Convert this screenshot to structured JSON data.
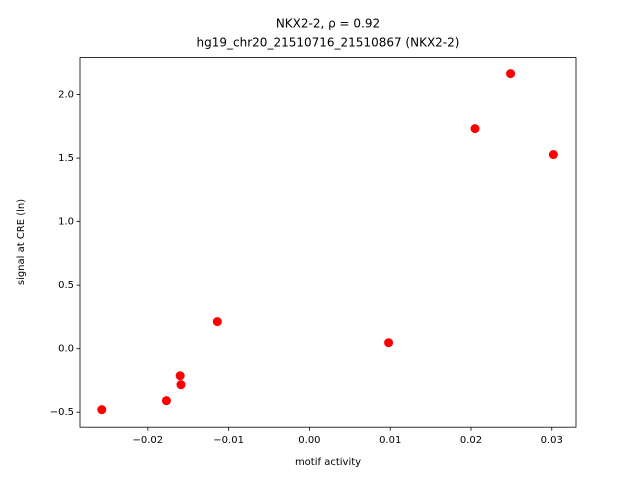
{
  "chart_data": {
    "type": "scatter",
    "title": "NKX2-2, ρ = 0.92",
    "subtitle": "hg19_chr20_21510716_21510867 (NKX2-2)",
    "x_label": "motif activity",
    "y_label": "signal at CRE (ln)",
    "color": "#ff0000",
    "x": [
      0.0302,
      0.0249,
      0.0205,
      0.0098,
      -0.0114,
      -0.016,
      -0.0159,
      -0.0177,
      -0.0257
    ],
    "values": [
      1.528,
      2.165,
      1.732,
      0.047,
      0.213,
      -0.213,
      -0.283,
      -0.409,
      -0.48
    ],
    "xlim": [
      -0.0284,
      0.033
    ],
    "ylim": [
      -0.618,
      2.291
    ],
    "xticks": [
      {
        "value": -0.02,
        "label": "−0.02"
      },
      {
        "value": -0.01,
        "label": "−0.01"
      },
      {
        "value": 0,
        "label": "0.00"
      },
      0.01,
      0.02,
      0.03
    ],
    "yticks": [
      {
        "value": -0.5,
        "label": "−0.5"
      },
      {
        "value": 0,
        "label": "0.0"
      },
      0.5,
      {
        "value": 1,
        "label": "1.0"
      },
      1.5,
      {
        "value": 2,
        "label": "2.0"
      }
    ]
  }
}
